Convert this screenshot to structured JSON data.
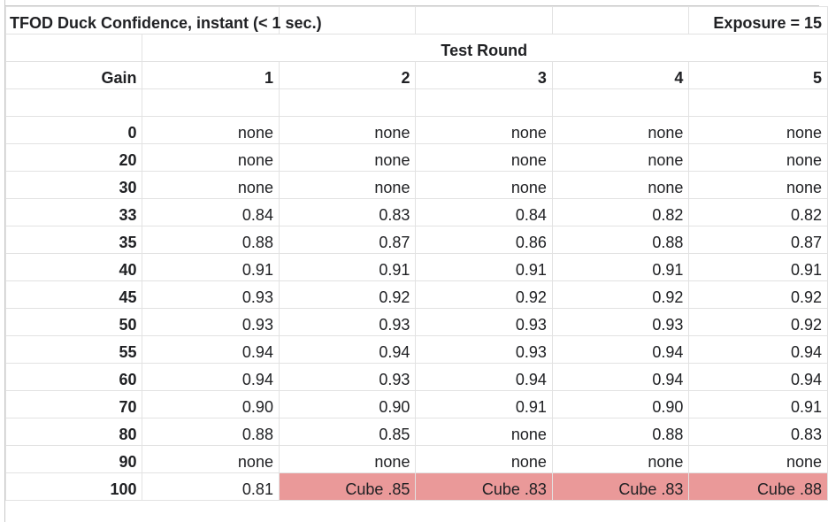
{
  "sheet": {
    "title": "TFOD Duck Confidence, instant (< 1 sec.)",
    "exposure": "Exposure = 15",
    "test_round_header": "Test Round",
    "gain_header": "Gain",
    "rounds": [
      "1",
      "2",
      "3",
      "4",
      "5"
    ],
    "rows": [
      {
        "gain": "0",
        "values": [
          "none",
          "none",
          "none",
          "none",
          "none"
        ]
      },
      {
        "gain": "20",
        "values": [
          "none",
          "none",
          "none",
          "none",
          "none"
        ]
      },
      {
        "gain": "30",
        "values": [
          "none",
          "none",
          "none",
          "none",
          "none"
        ]
      },
      {
        "gain": "33",
        "values": [
          "0.84",
          "0.83",
          "0.84",
          "0.82",
          "0.82"
        ]
      },
      {
        "gain": "35",
        "values": [
          "0.88",
          "0.87",
          "0.86",
          "0.88",
          "0.87"
        ]
      },
      {
        "gain": "40",
        "values": [
          "0.91",
          "0.91",
          "0.91",
          "0.91",
          "0.91"
        ]
      },
      {
        "gain": "45",
        "values": [
          "0.93",
          "0.92",
          "0.92",
          "0.92",
          "0.92"
        ]
      },
      {
        "gain": "50",
        "values": [
          "0.93",
          "0.93",
          "0.93",
          "0.93",
          "0.92"
        ]
      },
      {
        "gain": "55",
        "values": [
          "0.94",
          "0.94",
          "0.93",
          "0.94",
          "0.94"
        ]
      },
      {
        "gain": "60",
        "values": [
          "0.94",
          "0.93",
          "0.94",
          "0.94",
          "0.94"
        ]
      },
      {
        "gain": "70",
        "values": [
          "0.90",
          "0.90",
          "0.91",
          "0.90",
          "0.91"
        ]
      },
      {
        "gain": "80",
        "values": [
          "0.88",
          "0.85",
          "none",
          "0.88",
          "0.83"
        ]
      },
      {
        "gain": "90",
        "values": [
          "none",
          "none",
          "none",
          "none",
          "none"
        ]
      },
      {
        "gain": "100",
        "values": [
          "0.81",
          "Cube .85",
          "Cube .83",
          "Cube .83",
          "Cube .88"
        ],
        "highlight": [
          false,
          true,
          true,
          true,
          true
        ]
      }
    ],
    "highlight_color": "#ea9999"
  }
}
